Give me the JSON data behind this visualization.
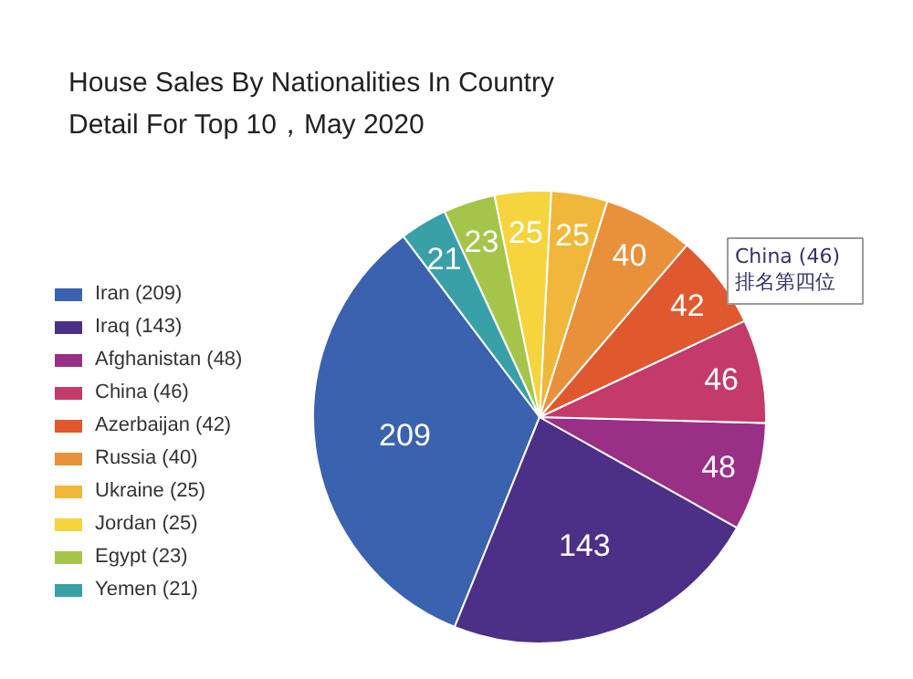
{
  "chart_data": {
    "type": "pie",
    "title": "House Sales By Nationalities In Country\nDetail For Top 10，May 2020",
    "categories": [
      "Iran (209)",
      "Iraq (143)",
      "Afghanistan (48)",
      "China (46)",
      "Azerbaijan (42)",
      "Russia (40)",
      "Ukraine (25)",
      "Jordan (25)",
      "Egypt (23)",
      "Yemen (21)"
    ],
    "values": [
      209,
      143,
      48,
      46,
      42,
      40,
      25,
      25,
      23,
      21
    ],
    "colors": [
      "#3b62ae",
      "#4c2f86",
      "#9a2f86",
      "#c43a6a",
      "#e0582e",
      "#e8903a",
      "#f0b73a",
      "#f5d43e",
      "#a5c54a",
      "#3aa0a8"
    ],
    "data_labels": true,
    "legend": "left",
    "annotations": [
      "China (46)\n排名第四位"
    ]
  }
}
